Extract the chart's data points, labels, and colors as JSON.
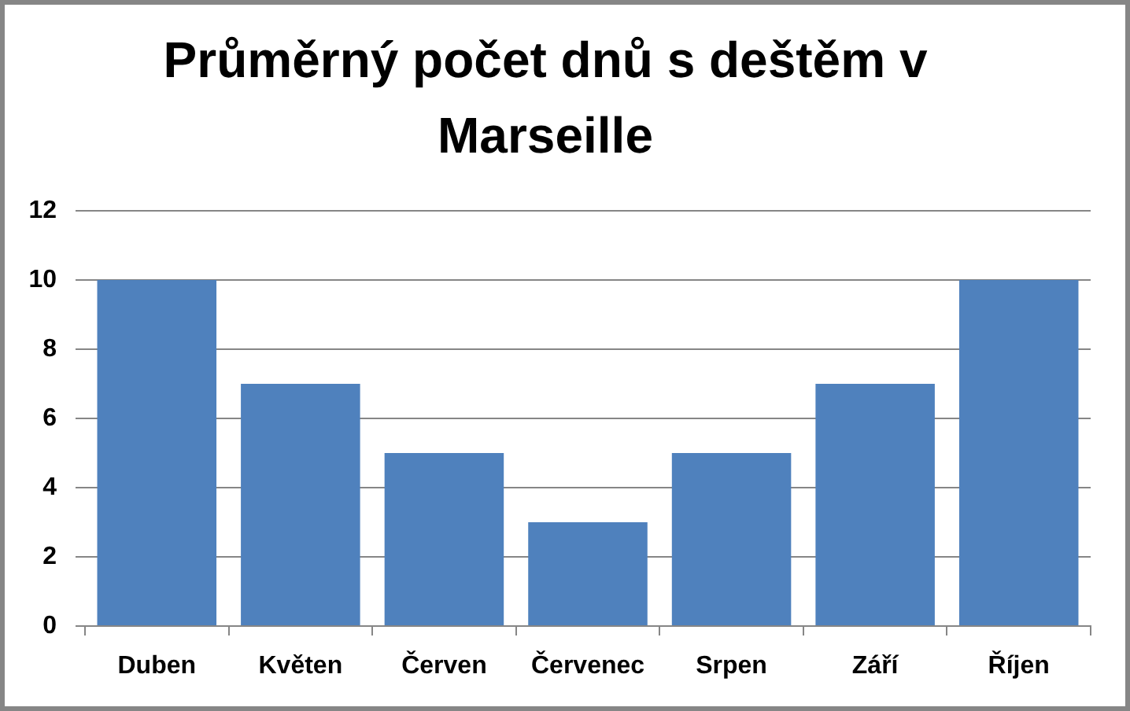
{
  "chart_data": {
    "type": "bar",
    "title": "Průměrný počet dnů s deštěm v Marseille",
    "categories": [
      "Duben",
      "Květen",
      "Červen",
      "Červenec",
      "Srpen",
      "Září",
      "Říjen"
    ],
    "values": [
      10,
      7,
      5,
      3,
      5,
      7,
      10
    ],
    "color": "#4f81bd",
    "ylim": [
      0,
      12
    ],
    "yticks": [
      0,
      2,
      4,
      6,
      8,
      10,
      12
    ],
    "grid": "y"
  }
}
